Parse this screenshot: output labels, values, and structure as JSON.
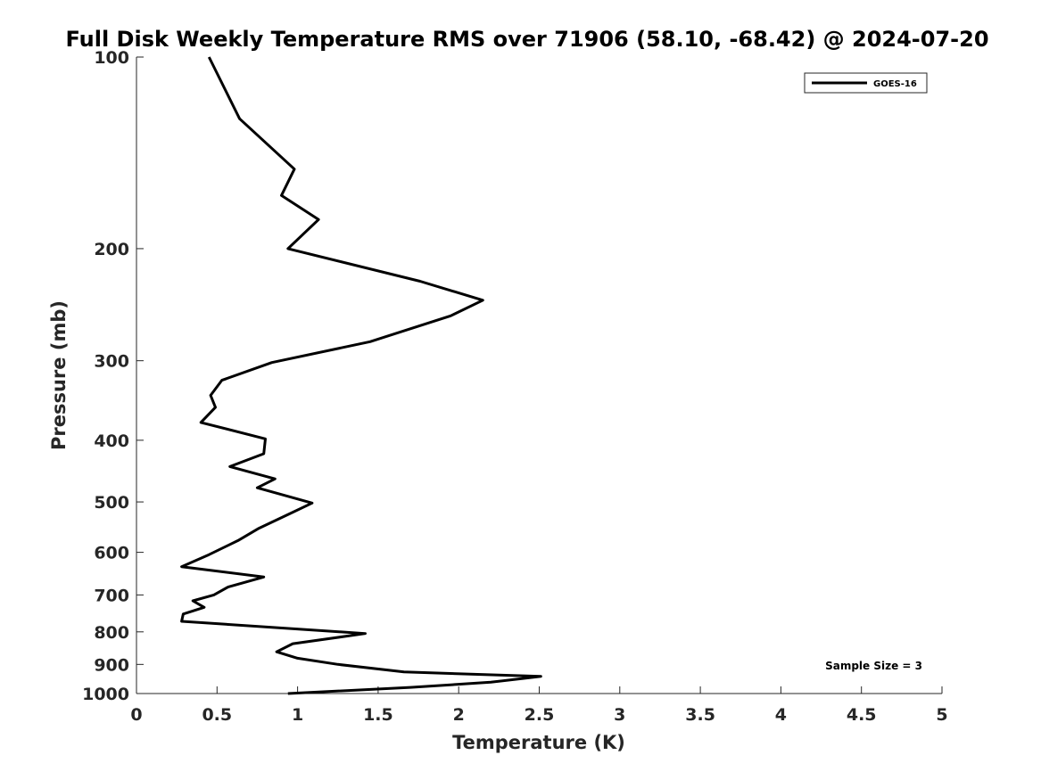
{
  "chart_data": {
    "type": "line",
    "title": "Full Disk Weekly Temperature RMS over 71906 (58.10, -68.42) @ 2024-07-20",
    "xlabel": "Temperature (K)",
    "ylabel": "Pressure (mb)",
    "xlim": [
      0,
      5
    ],
    "ylim": [
      1000,
      100
    ],
    "yscale": "log",
    "reverse_y": true,
    "x_ticks": [
      "0",
      "0.5",
      "1",
      "1.5",
      "2",
      "2.5",
      "3",
      "3.5",
      "4",
      "4.5",
      "5"
    ],
    "y_ticks": [
      "100",
      "200",
      "300",
      "400",
      "500",
      "600",
      "700",
      "800",
      "900",
      "1000"
    ],
    "grid": false,
    "legend_position": "top-right",
    "series": [
      {
        "name": "GOES-16",
        "color": "#000000",
        "points": [
          [
            0.45,
            100
          ],
          [
            0.64,
            125
          ],
          [
            0.98,
            150
          ],
          [
            0.9,
            165
          ],
          [
            1.13,
            180
          ],
          [
            0.94,
            200
          ],
          [
            1.76,
            225
          ],
          [
            2.15,
            241
          ],
          [
            1.95,
            255
          ],
          [
            1.45,
            280
          ],
          [
            0.84,
            302
          ],
          [
            0.53,
            322
          ],
          [
            0.46,
            340
          ],
          [
            0.49,
            355
          ],
          [
            0.4,
            375
          ],
          [
            0.8,
            398
          ],
          [
            0.79,
            420
          ],
          [
            0.58,
            440
          ],
          [
            0.86,
            460
          ],
          [
            0.75,
            475
          ],
          [
            1.09,
            502
          ],
          [
            0.95,
            522
          ],
          [
            0.76,
            550
          ],
          [
            0.63,
            575
          ],
          [
            0.45,
            605
          ],
          [
            0.28,
            632
          ],
          [
            0.79,
            656
          ],
          [
            0.57,
            680
          ],
          [
            0.48,
            700
          ],
          [
            0.35,
            715
          ],
          [
            0.42,
            732
          ],
          [
            0.29,
            750
          ],
          [
            0.28,
            770
          ],
          [
            1.42,
            805
          ],
          [
            0.97,
            835
          ],
          [
            0.87,
            860
          ],
          [
            1.0,
            880
          ],
          [
            1.25,
            900
          ],
          [
            1.66,
            925
          ],
          [
            2.51,
            940
          ],
          [
            2.2,
            960
          ],
          [
            1.7,
            978
          ],
          [
            0.94,
            1000
          ]
        ]
      }
    ],
    "annotations": [
      {
        "text": "Sample Size = 3",
        "position": "bottom-right"
      }
    ]
  }
}
